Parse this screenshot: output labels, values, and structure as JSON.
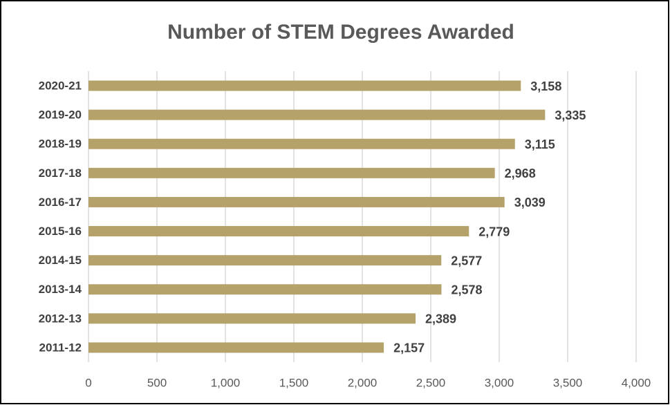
{
  "chart_data": {
    "type": "bar",
    "title": "Number of STEM Degrees Awarded",
    "categories": [
      "2020-21",
      "2019-20",
      "2018-19",
      "2017-18",
      "2016-17",
      "2015-16",
      "2014-15",
      "2013-14",
      "2012-13",
      "2011-12"
    ],
    "values": [
      3158,
      3335,
      3115,
      2968,
      3039,
      2779,
      2577,
      2578,
      2389,
      2157
    ],
    "value_labels": [
      "3,158",
      "3,335",
      "3,115",
      "2,968",
      "3,039",
      "2,779",
      "2,577",
      "2,578",
      "2,389",
      "2,157"
    ],
    "color": "#b5a26a",
    "xlim": [
      0,
      4000
    ],
    "xticks": [
      0,
      500,
      {
        "value": 1000,
        "label": "1,000"
      },
      {
        "value": 1500,
        "label": "1,500"
      },
      {
        "value": 2000,
        "label": "2,000"
      },
      {
        "value": 2500,
        "label": "2,500"
      },
      {
        "value": 3000,
        "label": "3,000"
      },
      {
        "value": 3500,
        "label": "3,500"
      },
      {
        "value": 4000,
        "label": "4,000"
      }
    ],
    "grid": true
  }
}
